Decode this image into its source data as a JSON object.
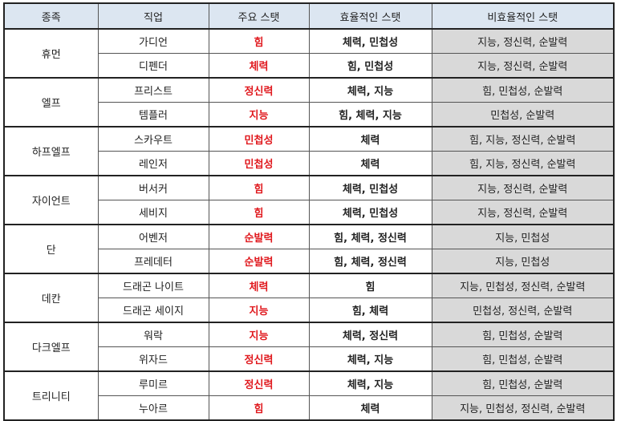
{
  "headers": [
    "종족",
    "직업",
    "주요 스탯",
    "효율적인 스탯",
    "비효율적인 스탯"
  ],
  "colors": {
    "header_bg": "#dce6f1",
    "main_stat": "#e0191e",
    "inefficient_bg": "#d9d9d9"
  },
  "groups": [
    {
      "race": "휴먼",
      "classes": [
        {
          "job": "가디언",
          "main": "힘",
          "efficient": "체력, 민첩성",
          "inefficient": "지능, 정신력, 순발력"
        },
        {
          "job": "디펜더",
          "main": "체력",
          "efficient": "힘, 민첩성",
          "inefficient": "지능, 정신력, 순발력"
        }
      ]
    },
    {
      "race": "엘프",
      "classes": [
        {
          "job": "프리스트",
          "main": "정신력",
          "efficient": "체력, 지능",
          "inefficient": "힘, 민첩성, 순발력"
        },
        {
          "job": "템플러",
          "main": "지능",
          "efficient": "힘, 체력, 지능",
          "inefficient": "민첩성, 순발력"
        }
      ]
    },
    {
      "race": "하프엘프",
      "classes": [
        {
          "job": "스카우트",
          "main": "민첩성",
          "efficient": "체력",
          "inefficient": "힘, 지능, 정신력, 순발력"
        },
        {
          "job": "레인저",
          "main": "민첩성",
          "efficient": "체력",
          "inefficient": "힘, 지능, 정신력, 순발력"
        }
      ]
    },
    {
      "race": "자이언트",
      "classes": [
        {
          "job": "버서커",
          "main": "힘",
          "efficient": "체력, 민첩성",
          "inefficient": "지능, 정신력, 순발력"
        },
        {
          "job": "세비지",
          "main": "힘",
          "efficient": "체력, 민첩성",
          "inefficient": "지능, 정신력, 순발력"
        }
      ]
    },
    {
      "race": "단",
      "classes": [
        {
          "job": "어벤저",
          "main": "순발력",
          "efficient": "힘, 체력, 정신력",
          "inefficient": "지능, 민첩성"
        },
        {
          "job": "프레데터",
          "main": "순발력",
          "efficient": "힘, 체력, 정신력",
          "inefficient": "지능, 민첩성"
        }
      ]
    },
    {
      "race": "데칸",
      "classes": [
        {
          "job": "드래곤 나이트",
          "main": "체력",
          "efficient": "힘",
          "inefficient": "지능, 민첩성, 정신력, 순발력"
        },
        {
          "job": "드래곤 세이지",
          "main": "지능",
          "efficient": "힘, 체력",
          "inefficient": "민첩성, 정신력, 순발력"
        }
      ]
    },
    {
      "race": "다크엘프",
      "classes": [
        {
          "job": "워락",
          "main": "지능",
          "efficient": "체력, 정신력",
          "inefficient": "힘, 민첩성, 순발력"
        },
        {
          "job": "위자드",
          "main": "정신력",
          "efficient": "체력, 지능",
          "inefficient": "힘, 민첩성, 순발력"
        }
      ]
    },
    {
      "race": "트리니티",
      "classes": [
        {
          "job": "루미르",
          "main": "정신력",
          "efficient": "체력, 지능",
          "inefficient": "힘, 민첩성, 순발력"
        },
        {
          "job": "누아르",
          "main": "힘",
          "efficient": "체력",
          "inefficient": "지능, 민첩성, 정신력, 순발력"
        }
      ]
    }
  ]
}
